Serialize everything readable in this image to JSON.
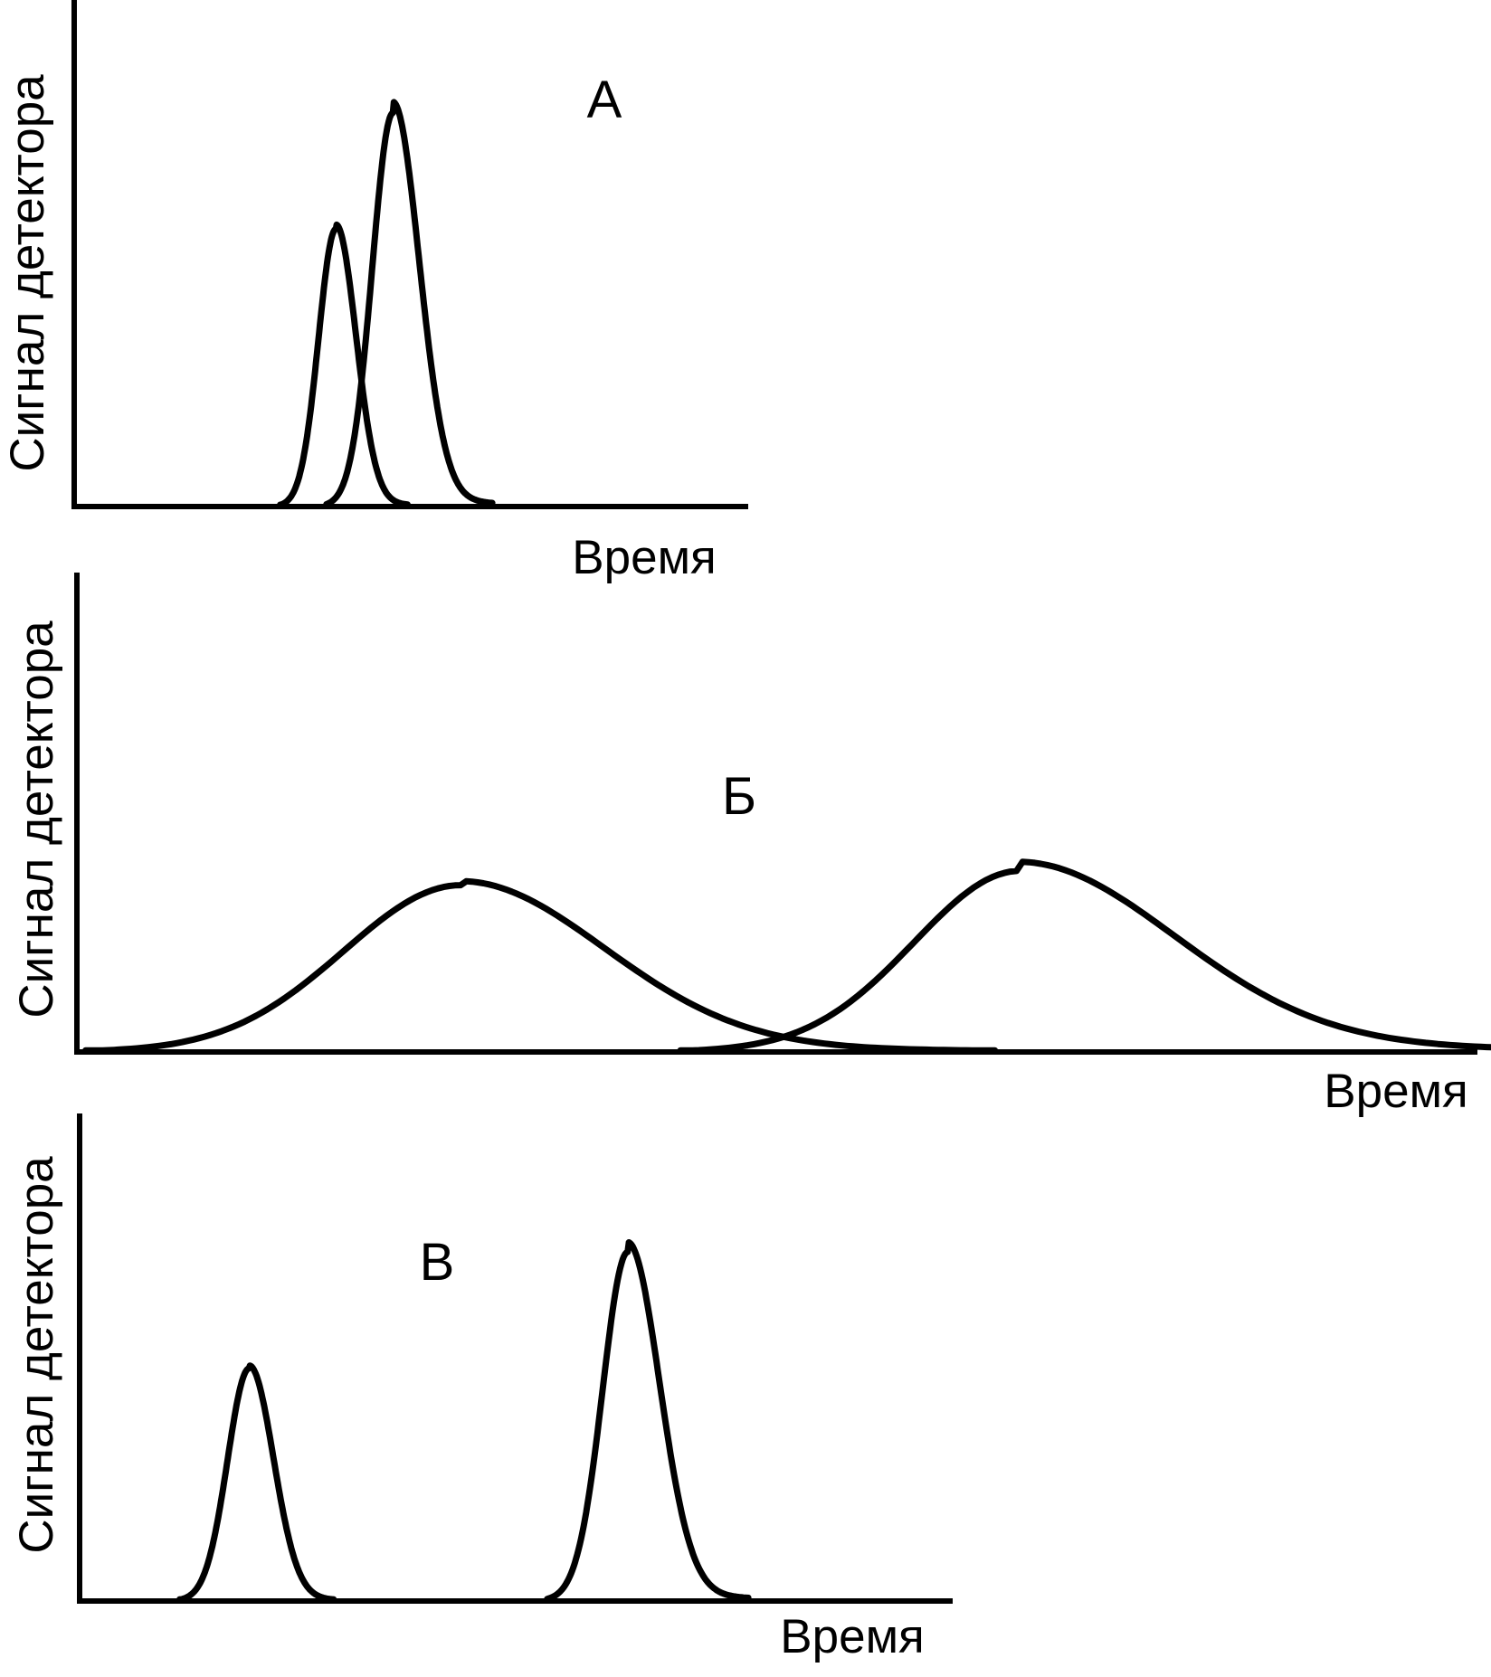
{
  "chart_data": [
    {
      "type": "line",
      "title": "А",
      "xlabel": "Время",
      "ylabel": "Сигнал детектора",
      "xlim": [
        0,
        100
      ],
      "ylim": [
        0,
        100
      ],
      "grid": false,
      "peaks": [
        {
          "position": 39,
          "height": 55,
          "width": 2.6,
          "tail": 0.8
        },
        {
          "position": 47.5,
          "height": 78,
          "width": 3.1,
          "tail": 1.4
        }
      ]
    },
    {
      "type": "line",
      "title": "Б",
      "xlabel": "Время",
      "ylabel": "Сигнал детектора",
      "xlim": [
        0,
        100
      ],
      "ylim": [
        0,
        100
      ],
      "grid": false,
      "peaks": [
        {
          "position": 27.5,
          "height": 35,
          "width": 8.4,
          "tail": 1.2
        },
        {
          "position": 67.5,
          "height": 38,
          "width": 7.6,
          "tail": 2.5
        }
      ]
    },
    {
      "type": "line",
      "title": "В",
      "xlabel": "Время",
      "ylabel": "Сигнал детектора",
      "xlim": [
        0,
        100
      ],
      "ylim": [
        0,
        100
      ],
      "grid": false,
      "peaks": [
        {
          "position": 19.5,
          "height": 48,
          "width": 2.5,
          "tail": 0.6
        },
        {
          "position": 63,
          "height": 72,
          "width": 2.9,
          "tail": 1.4
        }
      ]
    }
  ]
}
